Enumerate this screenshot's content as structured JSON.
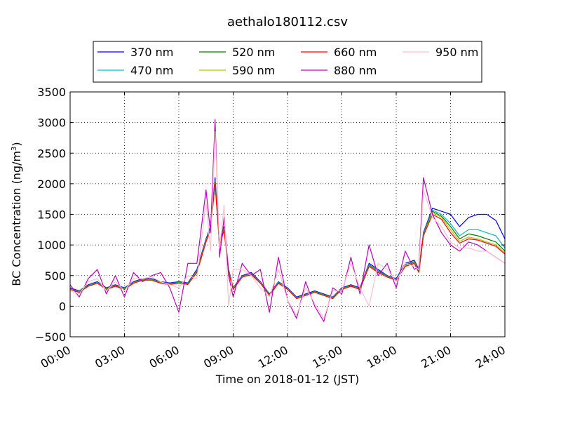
{
  "chart_data": {
    "type": "line",
    "title": "aethalo180112.csv",
    "xlabel": "Time on 2018-01-12 (JST)",
    "ylabel_main": "BC Concentration (ng/m",
    "ylabel_sup": "3",
    "ylabel_tail": ")",
    "xlim": [
      0,
      24
    ],
    "ylim": [
      -500,
      3500
    ],
    "x_unit": "hours",
    "xticks": [
      0,
      3,
      6,
      9,
      12,
      15,
      18,
      21,
      24
    ],
    "xtick_labels": [
      "00:00",
      "03:00",
      "06:00",
      "09:00",
      "12:00",
      "15:00",
      "18:00",
      "21:00",
      "24:00"
    ],
    "yticks": [
      -500,
      0,
      500,
      1000,
      1500,
      2000,
      2500,
      3000,
      3500
    ],
    "ytick_labels": [
      "−500",
      "0",
      "500",
      "1000",
      "1500",
      "2000",
      "2500",
      "3000",
      "3500"
    ],
    "grid": true,
    "legend_position": "top-center",
    "legend_columns": 4,
    "x": [
      0.0,
      0.5,
      1.0,
      1.5,
      2.0,
      2.5,
      3.0,
      3.5,
      4.0,
      4.5,
      5.0,
      5.5,
      6.0,
      6.5,
      7.0,
      7.5,
      7.75,
      8.0,
      8.25,
      8.5,
      8.75,
      9.0,
      9.5,
      10.0,
      10.5,
      11.0,
      11.5,
      12.0,
      12.5,
      13.0,
      13.5,
      14.0,
      14.5,
      15.0,
      15.5,
      16.0,
      16.5,
      17.0,
      17.5,
      18.0,
      18.5,
      19.0,
      19.25,
      19.5,
      20.0,
      20.5,
      21.0,
      21.5,
      22.0,
      22.5,
      23.0,
      23.5,
      24.0
    ],
    "series": [
      {
        "name": "370 nm",
        "color": "#0000ff",
        "values": [
          300,
          250,
          350,
          400,
          300,
          350,
          300,
          400,
          450,
          450,
          400,
          380,
          400,
          380,
          600,
          1100,
          1300,
          2100,
          1050,
          1300,
          600,
          300,
          500,
          550,
          400,
          200,
          400,
          300,
          150,
          200,
          250,
          200,
          150,
          300,
          350,
          300,
          700,
          600,
          500,
          450,
          700,
          750,
          600,
          1200,
          1600,
          1550,
          1500,
          1300,
          1450,
          1500,
          1500,
          1400,
          1100
        ]
      },
      {
        "name": "470 nm",
        "color": "#00bfbf",
        "values": [
          290,
          240,
          340,
          390,
          290,
          340,
          290,
          390,
          440,
          440,
          390,
          370,
          390,
          370,
          580,
          1080,
          1280,
          2050,
          1020,
          1270,
          580,
          290,
          490,
          530,
          390,
          190,
          390,
          290,
          140,
          190,
          240,
          190,
          140,
          290,
          340,
          290,
          680,
          580,
          490,
          440,
          680,
          730,
          580,
          1180,
          1570,
          1500,
          1350,
          1150,
          1250,
          1250,
          1200,
          1150,
          950
        ]
      },
      {
        "name": "520 nm",
        "color": "#008000",
        "values": [
          285,
          235,
          335,
          385,
          285,
          335,
          285,
          385,
          435,
          435,
          385,
          365,
          385,
          365,
          570,
          1070,
          1270,
          2030,
          1010,
          1260,
          570,
          285,
          485,
          525,
          385,
          185,
          385,
          285,
          135,
          185,
          235,
          185,
          135,
          285,
          335,
          285,
          670,
          570,
          485,
          435,
          670,
          720,
          570,
          1170,
          1550,
          1470,
          1300,
          1100,
          1180,
          1150,
          1100,
          1050,
          900
        ]
      },
      {
        "name": "590 nm",
        "color": "#bfbf00",
        "values": [
          280,
          230,
          330,
          380,
          280,
          330,
          280,
          380,
          430,
          430,
          380,
          360,
          380,
          360,
          560,
          1060,
          1260,
          2010,
          1000,
          1250,
          560,
          280,
          480,
          520,
          380,
          180,
          380,
          280,
          130,
          180,
          230,
          180,
          130,
          280,
          330,
          280,
          660,
          560,
          480,
          430,
          660,
          710,
          560,
          1160,
          1530,
          1450,
          1250,
          1060,
          1130,
          1100,
          1050,
          1000,
          870
        ]
      },
      {
        "name": "660 nm",
        "color": "#ff0000",
        "values": [
          275,
          225,
          325,
          375,
          275,
          325,
          275,
          375,
          425,
          425,
          375,
          355,
          375,
          355,
          550,
          1050,
          1250,
          2000,
          990,
          1240,
          550,
          275,
          475,
          515,
          375,
          175,
          375,
          275,
          125,
          175,
          225,
          175,
          125,
          275,
          325,
          275,
          650,
          550,
          475,
          425,
          650,
          700,
          550,
          1150,
          1500,
          1420,
          1200,
          1030,
          1100,
          1080,
          1030,
          980,
          850
        ]
      },
      {
        "name": "880 nm",
        "color": "#bf00bf",
        "values": [
          350,
          150,
          450,
          600,
          200,
          500,
          150,
          550,
          400,
          500,
          550,
          300,
          -100,
          700,
          700,
          1900,
          1200,
          3050,
          800,
          1450,
          500,
          150,
          700,
          500,
          600,
          -100,
          800,
          100,
          -200,
          400,
          0,
          -250,
          300,
          200,
          800,
          200,
          1000,
          500,
          700,
          300,
          900,
          600,
          650,
          2100,
          1500,
          1200,
          1000,
          900,
          1050,
          1000,
          900,
          800,
          700
        ]
      },
      {
        "name": "950 nm",
        "color": "#ffc0cb",
        "values": [
          250,
          200,
          400,
          450,
          250,
          400,
          250,
          450,
          450,
          480,
          400,
          350,
          300,
          500,
          450,
          1700,
          900,
          2850,
          950,
          1650,
          0,
          600,
          600,
          500,
          300,
          150,
          600,
          100,
          -150,
          300,
          50,
          -200,
          250,
          250,
          700,
          300,
          0,
          700,
          600,
          400,
          700,
          650,
          600,
          1900,
          1450,
          1300,
          1050,
          950,
          950,
          900,
          900,
          800,
          700
        ]
      }
    ]
  }
}
